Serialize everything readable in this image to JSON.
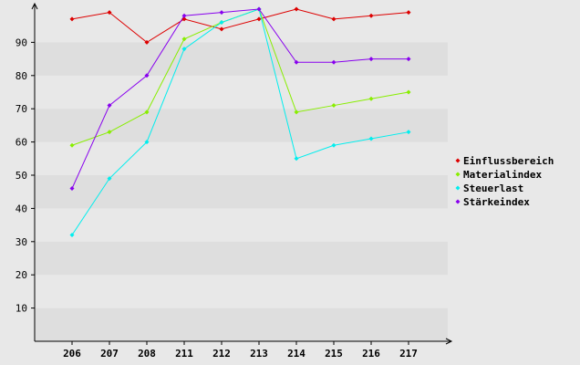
{
  "chart_data": {
    "type": "line",
    "title": "",
    "xlabel": "",
    "ylabel": "",
    "x": [
      "206",
      "207",
      "208",
      "211",
      "212",
      "213",
      "214",
      "215",
      "216",
      "217"
    ],
    "ylim": [
      0,
      100
    ],
    "yticks": [
      10,
      20,
      30,
      40,
      50,
      60,
      70,
      80,
      90
    ],
    "grid": "horizontal-bands",
    "legend_position": "right",
    "colors": {
      "background": "#e8e8e8",
      "band_light": "#e8e8e8",
      "band_dark": "#dedede",
      "axis": "#000000"
    },
    "series": [
      {
        "name": "Einflussbereich",
        "color": "#dd0000",
        "values": [
          97,
          99,
          90,
          97,
          94,
          97,
          100,
          97,
          98,
          99
        ]
      },
      {
        "name": "Materialindex",
        "color": "#88ee00",
        "values": [
          59,
          63,
          69,
          91,
          96,
          100,
          69,
          71,
          73,
          75
        ]
      },
      {
        "name": "Steuerlast",
        "color": "#00eeee",
        "values": [
          32,
          49,
          60,
          88,
          96,
          100,
          55,
          59,
          61,
          63
        ]
      },
      {
        "name": "Stärkeindex",
        "color": "#8800ee",
        "values": [
          46,
          71,
          80,
          98,
          99,
          100,
          84,
          84,
          85,
          85
        ]
      }
    ]
  }
}
